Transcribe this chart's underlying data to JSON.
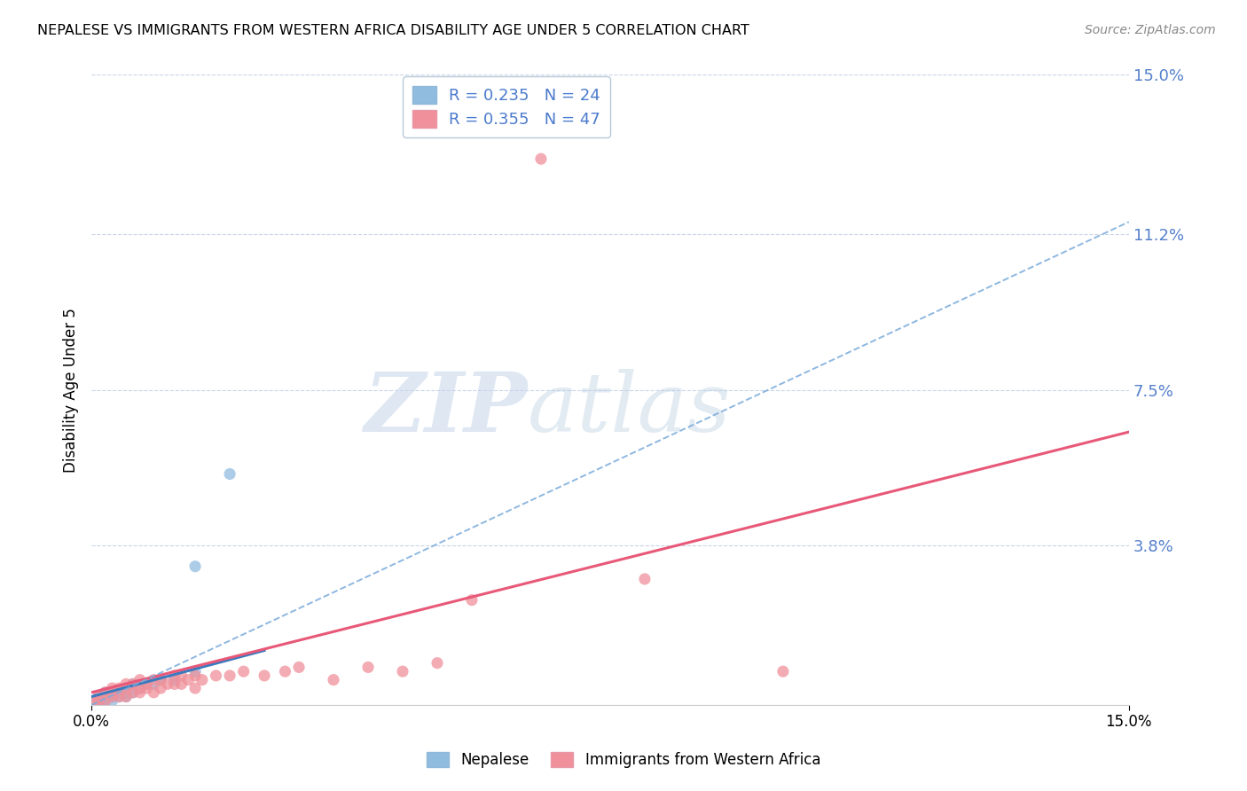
{
  "title": "NEPALESE VS IMMIGRANTS FROM WESTERN AFRICA DISABILITY AGE UNDER 5 CORRELATION CHART",
  "source": "Source: ZipAtlas.com",
  "ylabel": "Disability Age Under 5",
  "xlim": [
    0.0,
    0.15
  ],
  "ylim": [
    0.0,
    0.15
  ],
  "yticks": [
    0.0,
    0.038,
    0.075,
    0.112,
    0.15
  ],
  "ytick_labels": [
    "",
    "3.8%",
    "7.5%",
    "11.2%",
    "15.0%"
  ],
  "nepalese_color": "#90bce0",
  "western_africa_color": "#f0909a",
  "nepalese_line_color": "#3a7abf",
  "western_africa_line_color": "#e85878",
  "nepalese_dash_color": "#7aabdb",
  "background_color": "#ffffff",
  "grid_color": "#c8d4e8",
  "watermark_text": "ZIPatlas",
  "nepalese_R": 0.235,
  "nepalese_N": 24,
  "western_africa_R": 0.355,
  "western_africa_N": 47,
  "nepalese_x": [
    0.0005,
    0.001,
    0.001,
    0.0015,
    0.002,
    0.002,
    0.002,
    0.003,
    0.003,
    0.003,
    0.004,
    0.004,
    0.005,
    0.005,
    0.006,
    0.006,
    0.007,
    0.008,
    0.009,
    0.01,
    0.012,
    0.015,
    0.015,
    0.02
  ],
  "nepalese_y": [
    0.001,
    0.001,
    0.002,
    0.001,
    0.001,
    0.002,
    0.003,
    0.001,
    0.002,
    0.003,
    0.002,
    0.003,
    0.002,
    0.003,
    0.003,
    0.005,
    0.004,
    0.005,
    0.005,
    0.006,
    0.006,
    0.033,
    0.008,
    0.055
  ],
  "western_africa_x": [
    0.0005,
    0.001,
    0.001,
    0.002,
    0.002,
    0.003,
    0.003,
    0.003,
    0.004,
    0.004,
    0.005,
    0.005,
    0.005,
    0.006,
    0.006,
    0.007,
    0.007,
    0.007,
    0.008,
    0.008,
    0.009,
    0.009,
    0.01,
    0.01,
    0.011,
    0.012,
    0.012,
    0.013,
    0.013,
    0.014,
    0.015,
    0.015,
    0.016,
    0.018,
    0.02,
    0.022,
    0.025,
    0.028,
    0.03,
    0.035,
    0.04,
    0.045,
    0.05,
    0.055,
    0.065,
    0.08,
    0.1
  ],
  "western_africa_y": [
    0.001,
    0.001,
    0.002,
    0.001,
    0.003,
    0.002,
    0.003,
    0.004,
    0.002,
    0.004,
    0.002,
    0.004,
    0.005,
    0.003,
    0.005,
    0.003,
    0.004,
    0.006,
    0.004,
    0.005,
    0.003,
    0.006,
    0.004,
    0.006,
    0.005,
    0.005,
    0.007,
    0.005,
    0.007,
    0.006,
    0.004,
    0.007,
    0.006,
    0.007,
    0.007,
    0.008,
    0.007,
    0.008,
    0.009,
    0.006,
    0.009,
    0.008,
    0.01,
    0.025,
    0.13,
    0.03,
    0.008
  ],
  "nep_line_x": [
    0.0,
    0.025
  ],
  "nep_line_y": [
    0.002,
    0.013
  ],
  "wa_line_x": [
    0.0,
    0.15
  ],
  "wa_line_y": [
    0.003,
    0.065
  ],
  "dash_line_x": [
    0.0,
    0.15
  ],
  "dash_line_y": [
    0.0,
    0.115
  ]
}
